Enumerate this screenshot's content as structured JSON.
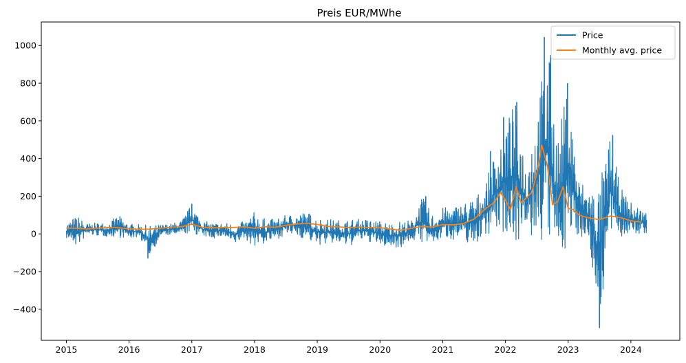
{
  "chart_data": {
    "type": "line",
    "title": "Preis EUR/MWhe",
    "xlabel": "",
    "ylabel": "",
    "xlim": [
      2014.6,
      2024.78
    ],
    "ylim": [
      -565,
      1125
    ],
    "x_ticks": [
      2015,
      2016,
      2017,
      2018,
      2019,
      2020,
      2021,
      2022,
      2023,
      2024
    ],
    "x_tick_labels": [
      "2015",
      "2016",
      "2017",
      "2018",
      "2019",
      "2020",
      "2021",
      "2022",
      "2023",
      "2024"
    ],
    "y_ticks": [
      -400,
      -200,
      0,
      200,
      400,
      600,
      800,
      1000
    ],
    "y_tick_labels": [
      "−400",
      "−200",
      "0",
      "200",
      "400",
      "600",
      "800",
      "1000"
    ],
    "grid": false,
    "legend_position": "top-right",
    "series": [
      {
        "name": "Price",
        "color": "#1f77b4",
        "style": "band",
        "x": [
          2015.0,
          2015.17,
          2015.33,
          2015.5,
          2015.67,
          2015.83,
          2016.0,
          2016.17,
          2016.33,
          2016.5,
          2016.67,
          2016.83,
          2017.0,
          2017.17,
          2017.33,
          2017.5,
          2017.67,
          2017.83,
          2018.0,
          2018.17,
          2018.33,
          2018.5,
          2018.67,
          2018.83,
          2019.0,
          2019.17,
          2019.33,
          2019.5,
          2019.67,
          2019.83,
          2020.0,
          2020.17,
          2020.33,
          2020.5,
          2020.67,
          2020.83,
          2021.0,
          2021.17,
          2021.33,
          2021.5,
          2021.67,
          2021.83,
          2022.0,
          2022.17,
          2022.33,
          2022.5,
          2022.67,
          2022.83,
          2023.0,
          2023.17,
          2023.33,
          2023.5,
          2023.67,
          2023.83,
          2024.0,
          2024.25
        ],
        "upper": [
          62,
          100,
          55,
          60,
          62,
          100,
          55,
          50,
          45,
          50,
          55,
          70,
          160,
          70,
          60,
          60,
          60,
          65,
          120,
          80,
          80,
          100,
          110,
          120,
          90,
          80,
          75,
          80,
          80,
          80,
          70,
          60,
          70,
          75,
          200,
          110,
          140,
          150,
          170,
          200,
          250,
          440,
          620,
          700,
          400,
          680,
          1045,
          520,
          800,
          300,
          250,
          280,
          520,
          250,
          170,
          120
        ],
        "lower": [
          -30,
          -80,
          -10,
          -15,
          -20,
          -25,
          -30,
          -20,
          -130,
          -15,
          -10,
          -10,
          -5,
          -20,
          -30,
          -20,
          -70,
          -30,
          -80,
          -60,
          -40,
          -10,
          -20,
          -40,
          -70,
          -60,
          -60,
          -80,
          -40,
          -50,
          -70,
          -80,
          -80,
          -40,
          -60,
          -80,
          -30,
          -40,
          -50,
          -80,
          -20,
          -10,
          -40,
          -80,
          -60,
          -80,
          -140,
          -140,
          -120,
          -20,
          -70,
          -500,
          -50,
          -30,
          -20,
          -5
        ],
        "spikes": [
          {
            "x": 2016.3,
            "y": -130
          },
          {
            "x": 2017.0,
            "y": 160
          },
          {
            "x": 2020.73,
            "y": 200
          },
          {
            "x": 2021.76,
            "y": 440
          },
          {
            "x": 2021.97,
            "y": 620
          },
          {
            "x": 2022.18,
            "y": 700
          },
          {
            "x": 2022.62,
            "y": 1045
          },
          {
            "x": 2022.72,
            "y": 950
          },
          {
            "x": 2022.99,
            "y": 800
          },
          {
            "x": 2023.5,
            "y": -500
          },
          {
            "x": 2023.71,
            "y": 525
          }
        ]
      },
      {
        "name": "Monthly avg. price",
        "color": "#ff7f0e",
        "style": "line",
        "x": [
          2015.0,
          2015.17,
          2015.33,
          2015.5,
          2015.67,
          2015.83,
          2016.0,
          2016.17,
          2016.33,
          2016.5,
          2016.67,
          2016.83,
          2017.0,
          2017.17,
          2017.33,
          2017.5,
          2017.67,
          2017.83,
          2018.0,
          2018.17,
          2018.33,
          2018.5,
          2018.67,
          2018.83,
          2019.0,
          2019.17,
          2019.33,
          2019.5,
          2019.67,
          2019.83,
          2020.0,
          2020.17,
          2020.33,
          2020.5,
          2020.67,
          2020.83,
          2021.0,
          2021.17,
          2021.33,
          2021.5,
          2021.67,
          2021.83,
          2021.92,
          2022.0,
          2022.08,
          2022.17,
          2022.25,
          2022.33,
          2022.42,
          2022.5,
          2022.58,
          2022.67,
          2022.75,
          2022.83,
          2022.92,
          2023.0,
          2023.08,
          2023.17,
          2023.33,
          2023.5,
          2023.67,
          2023.83,
          2024.0,
          2024.17
        ],
        "values": [
          31,
          30,
          26,
          31,
          34,
          33,
          27,
          24,
          26,
          30,
          36,
          38,
          52,
          35,
          32,
          34,
          34,
          38,
          30,
          38,
          35,
          45,
          53,
          56,
          50,
          40,
          37,
          34,
          36,
          34,
          33,
          25,
          20,
          30,
          40,
          36,
          50,
          48,
          55,
          78,
          130,
          170,
          220,
          180,
          128,
          250,
          165,
          190,
          220,
          320,
          470,
          360,
          155,
          170,
          250,
          135,
          130,
          100,
          85,
          75,
          95,
          87,
          70,
          62
        ]
      }
    ]
  }
}
